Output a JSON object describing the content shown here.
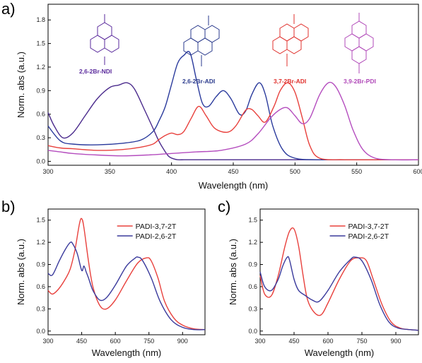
{
  "chart_data": [
    {
      "panel": "a)",
      "type": "line",
      "xlabel": "Wavelength (nm)",
      "ylabel": "Norm. abs (a.u.)",
      "xlim": [
        300,
        600
      ],
      "ylim": [
        -0.05,
        2.0
      ],
      "xticks": [
        300,
        350,
        400,
        450,
        500,
        550,
        600
      ],
      "yticks": [
        0.0,
        0.3,
        0.6,
        0.9,
        1.2,
        1.5,
        1.8
      ],
      "ytick_labels": [
        "0.0",
        "0.3",
        "0.6",
        "0.9",
        "1.2",
        "1.5",
        "1.8"
      ],
      "series": [
        {
          "name": "2,6-2Br-NDI",
          "color": "#4a2a8c",
          "x": [
            300,
            305,
            312,
            320,
            330,
            340,
            350,
            357,
            364,
            370,
            378,
            385,
            390,
            395,
            398,
            402,
            405,
            410,
            415,
            420,
            430,
            450,
            480,
            520,
            560,
            600
          ],
          "y": [
            0.62,
            0.45,
            0.3,
            0.36,
            0.58,
            0.8,
            0.94,
            0.97,
            1.0,
            0.92,
            0.66,
            0.42,
            0.25,
            0.12,
            0.06,
            0.03,
            0.02,
            0.02,
            0.02,
            0.02,
            0.02,
            0.02,
            0.02,
            0.02,
            0.02,
            0.02
          ]
        },
        {
          "name": "2,6-2Br-ADI",
          "color": "#2a3a9c",
          "x": [
            300,
            310,
            320,
            340,
            360,
            375,
            385,
            390,
            395,
            400,
            405,
            410,
            415,
            420,
            425,
            430,
            436,
            442,
            448,
            455,
            460,
            465,
            471,
            476,
            482,
            490,
            500,
            520,
            560,
            600
          ],
          "y": [
            0.45,
            0.26,
            0.22,
            0.21,
            0.23,
            0.27,
            0.38,
            0.52,
            0.7,
            0.98,
            1.25,
            1.35,
            1.38,
            1.05,
            0.74,
            0.7,
            0.82,
            0.9,
            0.8,
            0.6,
            0.64,
            0.85,
            1.0,
            0.85,
            0.45,
            0.15,
            0.04,
            0.02,
            0.02,
            0.02
          ]
        },
        {
          "name": "3,7-2Br-ADI",
          "color": "#e8403c",
          "x": [
            300,
            310,
            320,
            340,
            360,
            375,
            385,
            390,
            395,
            400,
            405,
            410,
            416,
            422,
            428,
            435,
            445,
            452,
            460,
            465,
            470,
            476,
            483,
            488,
            494,
            500,
            506,
            512,
            520,
            540,
            570,
            600
          ],
          "y": [
            0.2,
            0.17,
            0.16,
            0.14,
            0.15,
            0.18,
            0.22,
            0.28,
            0.33,
            0.36,
            0.34,
            0.38,
            0.55,
            0.7,
            0.58,
            0.42,
            0.37,
            0.45,
            0.65,
            0.66,
            0.58,
            0.5,
            0.7,
            0.9,
            1.0,
            0.88,
            0.55,
            0.2,
            0.04,
            0.02,
            0.02,
            0.02
          ]
        },
        {
          "name": "3,9-2Br-PDI",
          "color": "#b44cbe",
          "x": [
            300,
            310,
            320,
            340,
            360,
            380,
            400,
            420,
            440,
            460,
            470,
            480,
            488,
            494,
            500,
            506,
            512,
            520,
            527,
            533,
            540,
            547,
            555,
            565,
            580,
            600
          ],
          "y": [
            0.14,
            0.12,
            0.1,
            0.08,
            0.07,
            0.08,
            0.1,
            0.12,
            0.14,
            0.22,
            0.35,
            0.55,
            0.66,
            0.68,
            0.58,
            0.48,
            0.55,
            0.85,
            1.0,
            0.95,
            0.72,
            0.4,
            0.15,
            0.04,
            0.02,
            0.02
          ]
        }
      ],
      "molecule_labels": [
        "2,6-2Br-NDI",
        "2,6-2Br-ADI",
        "3,7-2Br-ADI",
        "3,9-2Br-PDI"
      ]
    },
    {
      "panel": "b)",
      "type": "line",
      "xlabel": "Wavelength (nm)",
      "ylabel": "Norm. abs (a.u.)",
      "xlim": [
        300,
        1000
      ],
      "ylim": [
        -0.05,
        1.65
      ],
      "xticks": [
        300,
        450,
        600,
        750,
        900
      ],
      "yticks": [
        0.0,
        0.3,
        0.6,
        0.9,
        1.2,
        1.5
      ],
      "ytick_labels": [
        "0.0",
        "0.3",
        "0.6",
        "0.9",
        "1.2",
        "1.5"
      ],
      "legend_position": "top-right",
      "series": [
        {
          "name": "PADI-3,7-2T",
          "color": "#e8403c",
          "x": [
            300,
            320,
            350,
            380,
            400,
            420,
            440,
            450,
            460,
            480,
            500,
            530,
            560,
            600,
            650,
            700,
            740,
            760,
            790,
            820,
            860,
            900,
            950,
            1000
          ],
          "y": [
            0.55,
            0.5,
            0.58,
            0.72,
            0.85,
            1.1,
            1.45,
            1.52,
            1.4,
            0.95,
            0.6,
            0.35,
            0.3,
            0.42,
            0.68,
            0.92,
            0.99,
            0.95,
            0.72,
            0.4,
            0.18,
            0.08,
            0.03,
            0.02
          ]
        },
        {
          "name": "PADI-2,6-2T",
          "color": "#3a3a9c",
          "x": [
            300,
            320,
            350,
            380,
            400,
            410,
            430,
            450,
            460,
            470,
            480,
            500,
            530,
            560,
            600,
            650,
            690,
            700,
            720,
            760,
            800,
            850,
            900,
            950,
            1000
          ],
          "y": [
            0.78,
            0.76,
            0.95,
            1.12,
            1.2,
            1.18,
            1.05,
            0.82,
            0.88,
            0.8,
            0.72,
            0.55,
            0.42,
            0.45,
            0.62,
            0.88,
            0.99,
            1.0,
            0.96,
            0.72,
            0.4,
            0.15,
            0.05,
            0.02,
            0.02
          ]
        }
      ]
    },
    {
      "panel": "c)",
      "type": "line",
      "xlabel": "Wavelength (nm)",
      "ylabel": "Norm. abs (a.u.)",
      "xlim": [
        300,
        1000
      ],
      "ylim": [
        -0.05,
        1.65
      ],
      "xticks": [
        300,
        450,
        600,
        750,
        900
      ],
      "yticks": [
        0.0,
        0.3,
        0.6,
        0.9,
        1.2,
        1.5
      ],
      "ytick_labels": [
        "0.0",
        "0.3",
        "0.6",
        "0.9",
        "1.2",
        "1.5"
      ],
      "legend_position": "top-right",
      "series": [
        {
          "name": "PADI-3,7-2T",
          "color": "#e8403c",
          "x": [
            300,
            320,
            350,
            380,
            410,
            430,
            450,
            470,
            490,
            510,
            540,
            570,
            600,
            650,
            700,
            740,
            770,
            800,
            840,
            880,
            920,
            960,
            1000
          ],
          "y": [
            0.75,
            0.5,
            0.48,
            0.75,
            1.15,
            1.35,
            1.38,
            1.15,
            0.75,
            0.42,
            0.25,
            0.22,
            0.38,
            0.7,
            0.95,
            0.99,
            0.95,
            0.7,
            0.35,
            0.12,
            0.04,
            0.02,
            0.01
          ]
        },
        {
          "name": "PADI-2,6-2T",
          "color": "#3a3a9c",
          "x": [
            300,
            320,
            350,
            380,
            400,
            420,
            430,
            450,
            470,
            500,
            530,
            560,
            600,
            650,
            700,
            720,
            750,
            790,
            830,
            870,
            910,
            960,
            1000
          ],
          "y": [
            0.8,
            0.6,
            0.55,
            0.7,
            0.88,
            1.0,
            0.96,
            0.7,
            0.55,
            0.48,
            0.42,
            0.4,
            0.55,
            0.8,
            0.97,
            1.0,
            0.95,
            0.7,
            0.35,
            0.12,
            0.04,
            0.02,
            0.01
          ]
        }
      ]
    }
  ]
}
